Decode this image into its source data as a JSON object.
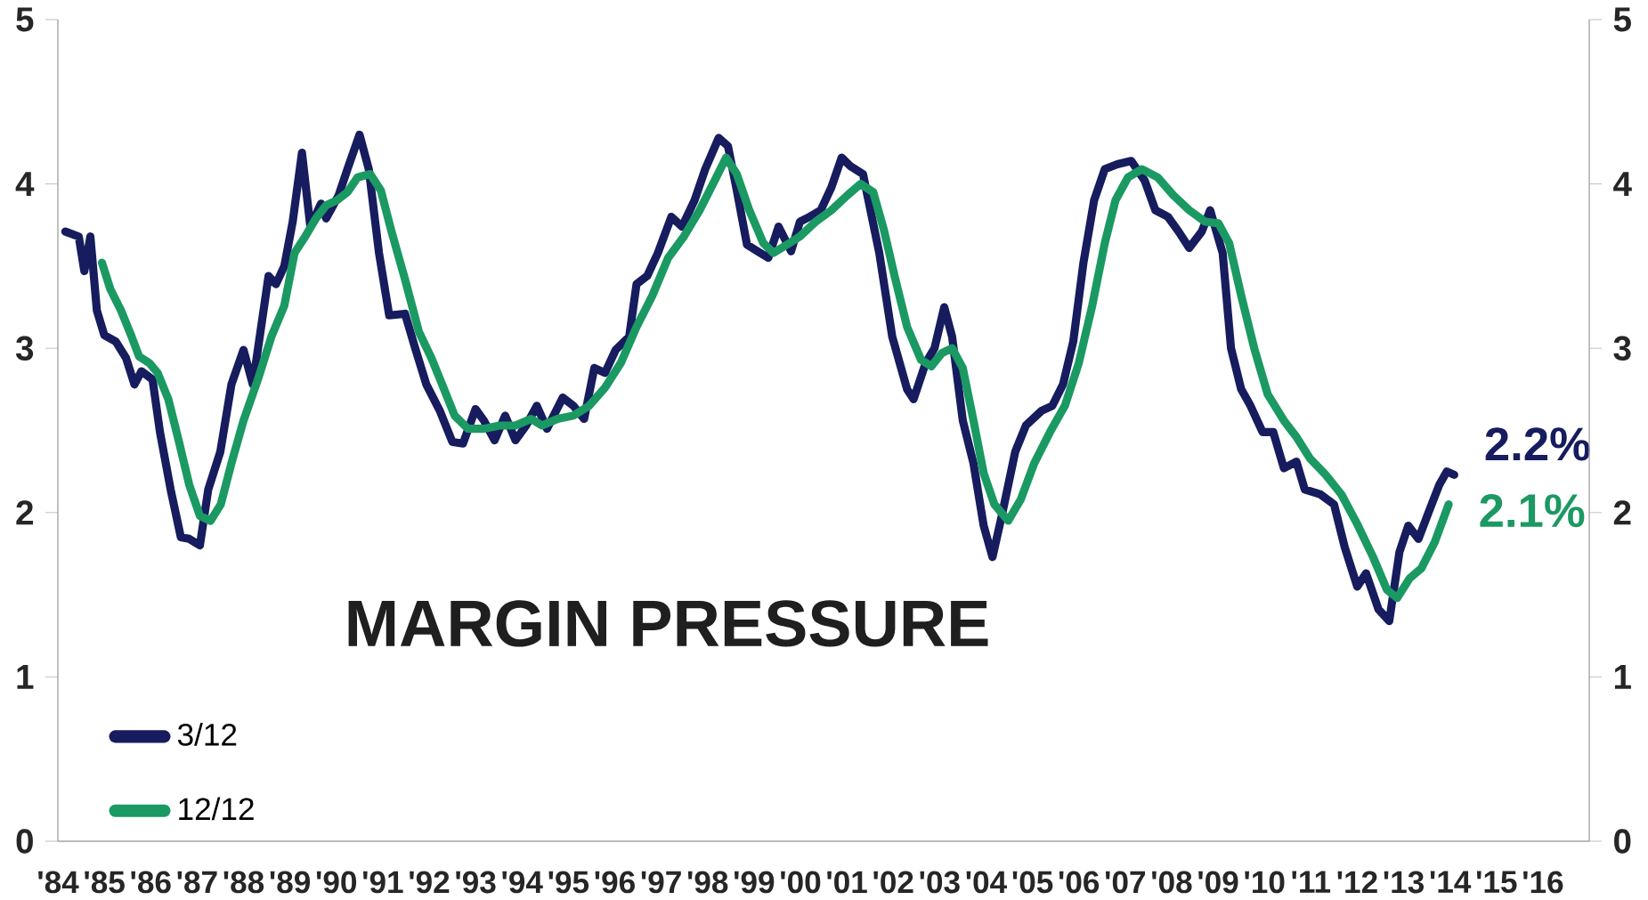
{
  "chart_data": {
    "type": "line",
    "title": "MARGIN PRESSURE",
    "legend": "bottom left",
    "line_style": "solid",
    "xlim": [
      1984,
      2017
    ],
    "ylim": [
      0,
      5
    ],
    "y2lim": [
      0,
      5
    ],
    "xticks": [
      {
        "value": 1984,
        "label": "'84"
      },
      {
        "value": 1985,
        "label": "'85"
      },
      {
        "value": 1986,
        "label": "'86"
      },
      {
        "value": 1987,
        "label": "'87"
      },
      {
        "value": 1988,
        "label": "'88"
      },
      {
        "value": 1989,
        "label": "'89"
      },
      {
        "value": 1990,
        "label": "'90"
      },
      {
        "value": 1991,
        "label": "'91"
      },
      {
        "value": 1992,
        "label": "'92"
      },
      {
        "value": 1993,
        "label": "'93"
      },
      {
        "value": 1994,
        "label": "'94"
      },
      {
        "value": 1995,
        "label": "'95"
      },
      {
        "value": 1996,
        "label": "'96"
      },
      {
        "value": 1997,
        "label": "'97"
      },
      {
        "value": 1998,
        "label": "'98"
      },
      {
        "value": 1999,
        "label": "'99"
      },
      {
        "value": 2000,
        "label": "'00"
      },
      {
        "value": 2001,
        "label": "'01"
      },
      {
        "value": 2002,
        "label": "'02"
      },
      {
        "value": 2003,
        "label": "'03"
      },
      {
        "value": 2004,
        "label": "'04"
      },
      {
        "value": 2005,
        "label": "'05"
      },
      {
        "value": 2006,
        "label": "'06"
      },
      {
        "value": 2007,
        "label": "'07"
      },
      {
        "value": 2008,
        "label": "'08"
      },
      {
        "value": 2009,
        "label": "'09"
      },
      {
        "value": 2010,
        "label": "'10"
      },
      {
        "value": 2011,
        "label": "'11"
      },
      {
        "value": 2012,
        "label": "'12"
      },
      {
        "value": 2013,
        "label": "'13"
      },
      {
        "value": 2014,
        "label": "'14"
      },
      {
        "value": 2015,
        "label": "'15"
      },
      {
        "value": 2016,
        "label": "'16"
      }
    ],
    "yticks": [
      0,
      1,
      2,
      3,
      4,
      5
    ],
    "y2ticks": [
      0,
      1,
      2,
      3,
      4,
      5
    ],
    "series": [
      {
        "name": "3/12",
        "color": "#161c5e",
        "x": [
          1984.16,
          1984.45,
          1984.57,
          1984.7,
          1984.84,
          1985.0,
          1985.25,
          1985.47,
          1985.65,
          1985.8,
          1986.04,
          1986.2,
          1986.43,
          1986.65,
          1986.83,
          1987.06,
          1987.24,
          1987.5,
          1987.74,
          1988.0,
          1988.2,
          1988.54,
          1988.7,
          1988.88,
          1989.06,
          1989.26,
          1989.44,
          1989.67,
          1989.78,
          1990.05,
          1990.24,
          1990.5,
          1990.7,
          1990.92,
          1991.14,
          1991.48,
          1991.7,
          1991.94,
          1992.23,
          1992.5,
          1992.73,
          1993.0,
          1993.18,
          1993.41,
          1993.64,
          1993.86,
          1994.09,
          1994.32,
          1994.54,
          1994.88,
          1995.11,
          1995.34,
          1995.56,
          1995.79,
          1996.02,
          1996.31,
          1996.47,
          1996.7,
          1996.93,
          1997.22,
          1997.45,
          1997.72,
          1997.95,
          1998.24,
          1998.44,
          1998.63,
          1998.85,
          1999.08,
          1999.31,
          1999.53,
          1999.8,
          1999.99,
          2000.2,
          2000.44,
          2000.67,
          2000.89,
          2001.07,
          2001.35,
          2001.7,
          2001.98,
          2002.3,
          2002.44,
          2002.7,
          2002.89,
          2003.1,
          2003.27,
          2003.5,
          2003.73,
          2003.95,
          2004.14,
          2004.34,
          2004.63,
          2004.86,
          2005.2,
          2005.43,
          2005.66,
          2005.88,
          2006.1,
          2006.33,
          2006.56,
          2006.83,
          2007.13,
          2007.42,
          2007.65,
          2007.92,
          2008.15,
          2008.38,
          2008.65,
          2008.83,
          2009.1,
          2009.28,
          2009.5,
          2009.7,
          2009.96,
          2010.19,
          2010.42,
          2010.69,
          2010.87,
          2011.21,
          2011.5,
          2011.73,
          2012.0,
          2012.19,
          2012.46,
          2012.69,
          2012.91,
          2013.1,
          2013.32,
          2013.55,
          2013.77,
          2013.93,
          2014.09
        ],
        "values": [
          3.71,
          3.68,
          3.47,
          3.68,
          3.23,
          3.08,
          3.04,
          2.94,
          2.78,
          2.86,
          2.81,
          2.49,
          2.14,
          1.85,
          1.84,
          1.8,
          2.14,
          2.37,
          2.78,
          2.99,
          2.78,
          3.44,
          3.39,
          3.5,
          3.77,
          4.19,
          3.74,
          3.88,
          3.79,
          3.93,
          4.09,
          4.3,
          4.09,
          3.58,
          3.2,
          3.21,
          3.0,
          2.78,
          2.62,
          2.43,
          2.42,
          2.63,
          2.56,
          2.44,
          2.59,
          2.44,
          2.53,
          2.65,
          2.51,
          2.7,
          2.65,
          2.57,
          2.88,
          2.85,
          2.99,
          3.07,
          3.39,
          3.44,
          3.58,
          3.8,
          3.74,
          3.9,
          4.09,
          4.28,
          4.23,
          3.96,
          3.63,
          3.59,
          3.55,
          3.74,
          3.59,
          3.77,
          3.8,
          3.84,
          3.98,
          4.16,
          4.11,
          4.06,
          3.58,
          3.07,
          2.75,
          2.69,
          2.91,
          3.0,
          3.25,
          3.07,
          2.56,
          2.3,
          1.92,
          1.73,
          1.98,
          2.37,
          2.53,
          2.62,
          2.65,
          2.78,
          3.04,
          3.52,
          3.9,
          4.09,
          4.12,
          4.14,
          4.02,
          3.84,
          3.8,
          3.71,
          3.61,
          3.71,
          3.84,
          3.58,
          3.0,
          2.75,
          2.65,
          2.49,
          2.49,
          2.27,
          2.31,
          2.14,
          2.11,
          2.05,
          1.79,
          1.55,
          1.63,
          1.41,
          1.34,
          1.76,
          1.92,
          1.84,
          2.01,
          2.17,
          2.25,
          2.23
        ]
      },
      {
        "name": "12/12",
        "color": "#1b9962",
        "x": [
          1984.95,
          1985.13,
          1985.36,
          1985.59,
          1985.75,
          1985.97,
          1986.15,
          1986.38,
          1986.61,
          1986.83,
          1987.06,
          1987.29,
          1987.51,
          1987.74,
          1988.0,
          1988.31,
          1988.6,
          1988.88,
          1989.1,
          1989.33,
          1989.56,
          1989.78,
          1990.01,
          1990.24,
          1990.46,
          1990.73,
          1990.96,
          1991.19,
          1991.48,
          1991.78,
          1992.05,
          1992.28,
          1992.55,
          1992.84,
          1993.18,
          1993.52,
          1993.86,
          1994.2,
          1994.43,
          1994.77,
          1995.11,
          1995.45,
          1995.79,
          1996.13,
          1996.47,
          1996.81,
          1997.15,
          1997.49,
          1997.83,
          1998.17,
          1998.4,
          1998.63,
          1998.9,
          1999.2,
          1999.42,
          1999.71,
          1999.99,
          2000.33,
          2000.67,
          2001.01,
          2001.3,
          2001.57,
          2001.8,
          2002.03,
          2002.3,
          2002.6,
          2002.82,
          2003.05,
          2003.27,
          2003.5,
          2003.73,
          2003.95,
          2004.18,
          2004.48,
          2004.75,
          2005.04,
          2005.38,
          2005.7,
          2006.0,
          2006.29,
          2006.56,
          2006.79,
          2007.06,
          2007.36,
          2007.7,
          2008.04,
          2008.38,
          2008.72,
          2009.01,
          2009.24,
          2009.5,
          2009.78,
          2010.07,
          2010.42,
          2010.69,
          2010.98,
          2011.32,
          2011.66,
          2012.0,
          2012.34,
          2012.64,
          2012.86,
          2013.13,
          2013.38,
          2013.67,
          2013.97
        ],
        "values": [
          3.52,
          3.36,
          3.23,
          3.07,
          2.95,
          2.91,
          2.85,
          2.69,
          2.43,
          2.17,
          1.98,
          1.95,
          2.05,
          2.3,
          2.56,
          2.81,
          3.07,
          3.26,
          3.58,
          3.68,
          3.79,
          3.87,
          3.9,
          3.95,
          4.04,
          4.06,
          3.96,
          3.71,
          3.42,
          3.1,
          2.94,
          2.78,
          2.59,
          2.51,
          2.51,
          2.53,
          2.53,
          2.57,
          2.53,
          2.57,
          2.59,
          2.65,
          2.76,
          2.91,
          3.13,
          3.32,
          3.55,
          3.68,
          3.84,
          4.03,
          4.16,
          4.06,
          3.84,
          3.64,
          3.58,
          3.63,
          3.68,
          3.77,
          3.84,
          3.93,
          4.0,
          3.95,
          3.72,
          3.44,
          3.13,
          2.93,
          2.89,
          2.97,
          3.0,
          2.88,
          2.56,
          2.24,
          2.05,
          1.95,
          2.08,
          2.3,
          2.49,
          2.65,
          2.91,
          3.26,
          3.64,
          3.9,
          4.04,
          4.09,
          4.04,
          3.93,
          3.84,
          3.77,
          3.76,
          3.64,
          3.32,
          3.0,
          2.72,
          2.56,
          2.46,
          2.33,
          2.23,
          2.11,
          1.93,
          1.73,
          1.53,
          1.48,
          1.6,
          1.66,
          1.82,
          2.05
        ]
      }
    ],
    "annotations": [
      {
        "text": "2.2%",
        "x": 2014.09,
        "y": 2.23
      },
      {
        "text": "2.1%",
        "x": 2013.97,
        "y": 2.05
      }
    ]
  }
}
